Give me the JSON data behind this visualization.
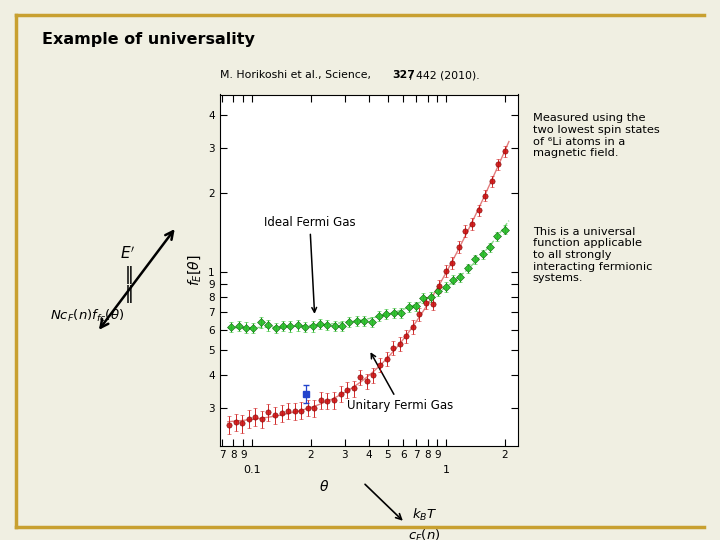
{
  "title": "Example of universality",
  "subtitle_pre": "M. Horikoshi et al., Science, ",
  "subtitle_bold": "327",
  "subtitle_post": ", 442 (2010).",
  "bg_color": "#f0efe2",
  "plot_bg": "#ffffff",
  "border_color": "#c8a030",
  "right_text_1": "Measured using the\ntwo lowest spin states\nof ⁶Li atoms in a\nmagnetic field.",
  "right_text_2": "This is a universal\nfunction applicable\nto all strongly\ninteracting fermionic\nsystems.",
  "ideal_color": "#22bb22",
  "unitary_color": "#cc1111",
  "blue_color": "#2244cc",
  "annotation_ideal": "Ideal Fermi Gas",
  "annotation_unitary": "Unitary Fermi Gas",
  "xlabel_theta": "θ",
  "xlabel_frac_num": "k_BT",
  "xlabel_frac_den": "c_F(n)",
  "ylabel": "f_E[θ]"
}
